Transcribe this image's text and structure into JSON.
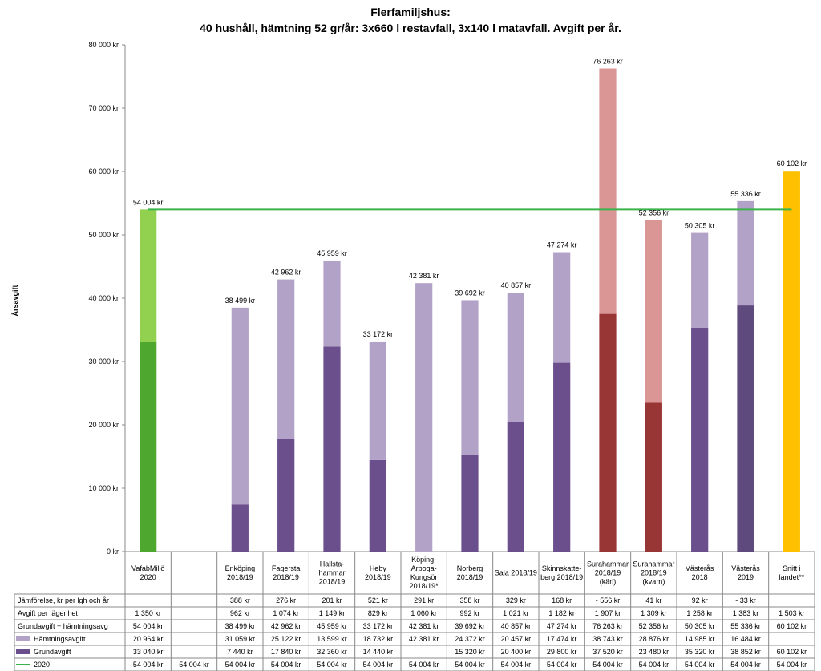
{
  "chart_data": {
    "type": "bar",
    "title_line1": "Flerfamiljshus:",
    "title_line2": "40 hushåll, hämtning 52 gr/år: 3x660 l restavfall, 3x140 l matavfall. Avgift per år.",
    "ylabel": "Årsavgift",
    "ylim": [
      0,
      80000
    ],
    "y_ticks": [
      "0 kr",
      "10 000 kr",
      "20 000 kr",
      "30 000 kr",
      "40 000 kr",
      "50 000 kr",
      "60 000 kr",
      "70 000 kr",
      "80 000 kr"
    ],
    "categories": [
      [
        "VafabMiljö",
        "2020"
      ],
      [],
      [
        "Enköping",
        "2018/19"
      ],
      [
        "Fagersta",
        "2018/19"
      ],
      [
        "Hallsta-",
        "hammar",
        "2018/19"
      ],
      [
        "Heby",
        "2018/19"
      ],
      [
        "Köping-",
        "Arboga-",
        "Kungsör",
        "2018/19*"
      ],
      [
        "Norberg",
        "2018/19"
      ],
      [
        "Sala 2018/19"
      ],
      [
        "Skinnskatte-",
        "berg 2018/19"
      ],
      [
        "Surahammar",
        "2018/19",
        "(kärl)"
      ],
      [
        "Surahammar",
        "2018/19",
        "(kvarn)"
      ],
      [
        "Västerås",
        "2018"
      ],
      [
        "Västerås",
        "2019"
      ],
      [
        "Snitt i",
        "landet**"
      ]
    ],
    "totals": [
      54004,
      null,
      38499,
      42962,
      45959,
      33172,
      42381,
      39692,
      40857,
      47274,
      76263,
      52356,
      50305,
      55336,
      60102
    ],
    "total_labels": [
      "54 004 kr",
      "",
      "38 499 kr",
      "42 962 kr",
      "45 959 kr",
      "33 172 kr",
      "42 381 kr",
      "39 692 kr",
      "40 857 kr",
      "47 274 kr",
      "76 263 kr",
      "52 356 kr",
      "50 305 kr",
      "55 336 kr",
      "60 102 kr"
    ],
    "series": [
      {
        "name": "Grundavgift",
        "values": [
          33040,
          null,
          7440,
          17840,
          32360,
          14440,
          null,
          15320,
          20400,
          29800,
          37520,
          23480,
          35320,
          38852,
          60102
        ],
        "colors": [
          "#4ea72e",
          "",
          "#6a4f8c",
          "#6a4f8c",
          "#6a4f8c",
          "#6a4f8c",
          "",
          "#6a4f8c",
          "#6a4f8c",
          "#6a4f8c",
          "#983535",
          "#983535",
          "#6a4f8c",
          "#5f4a7e",
          "#ffc000"
        ]
      },
      {
        "name": "Hämtningsavgift",
        "values": [
          20964,
          null,
          31059,
          25122,
          13599,
          18732,
          42381,
          24372,
          20457,
          17474,
          38743,
          28876,
          14985,
          16484,
          null
        ],
        "colors": [
          "#92d050",
          "",
          "#b3a2c7",
          "#b3a2c7",
          "#b3a2c7",
          "#b3a2c7",
          "#b3a2c7",
          "#b3a2c7",
          "#b3a2c7",
          "#b3a2c7",
          "#d99694",
          "#d99694",
          "#b3a2c7",
          "#b3a2c7",
          ""
        ]
      },
      {
        "name": "2020",
        "type": "line",
        "value": 54004,
        "color": "#3ab34a"
      }
    ],
    "table": {
      "rows": [
        {
          "label": "Jämförelse, kr per lgh och år",
          "swatch": "",
          "cells": [
            "",
            "",
            "388 kr",
            "276 kr",
            "201 kr",
            "521 kr",
            "291 kr",
            "358 kr",
            "329 kr",
            "168 kr",
            "- 556 kr",
            "41 kr",
            "92 kr",
            "- 33 kr",
            ""
          ]
        },
        {
          "label": "Avgift per lägenhet",
          "swatch": "",
          "cells": [
            "1 350 kr",
            "",
            "962 kr",
            "1 074 kr",
            "1 149 kr",
            "829 kr",
            "1 060 kr",
            "992 kr",
            "1 021 kr",
            "1 182 kr",
            "1 907 kr",
            "1 309 kr",
            "1 258 kr",
            "1 383 kr",
            "1 503 kr"
          ]
        },
        {
          "label": "Grundavgift + hämtningsavg",
          "swatch": "",
          "cells": [
            "54 004 kr",
            "",
            "38 499 kr",
            "42 962 kr",
            "45 959 kr",
            "33 172 kr",
            "42 381 kr",
            "39 692 kr",
            "40 857 kr",
            "47 274 kr",
            "76 263 kr",
            "52 356 kr",
            "50 305 kr",
            "55 336 kr",
            "60 102 kr"
          ]
        },
        {
          "label": "Hämtningsavgift",
          "swatch": "#b3a2c7",
          "cells": [
            "20 964 kr",
            "",
            "31 059 kr",
            "25 122 kr",
            "13 599 kr",
            "18 732 kr",
            "42 381 kr",
            "24 372 kr",
            "20 457 kr",
            "17 474 kr",
            "38 743 kr",
            "28 876 kr",
            "14 985 kr",
            "16 484 kr",
            ""
          ]
        },
        {
          "label": "Grundavgift",
          "swatch": "#6a4f8c",
          "cells": [
            "33 040 kr",
            "",
            "7 440 kr",
            "17 840 kr",
            "32 360 kr",
            "14 440 kr",
            "",
            "15 320 kr",
            "20 400 kr",
            "29 800 kr",
            "37 520 kr",
            "23 480 kr",
            "35 320 kr",
            "38 852 kr",
            "60 102 kr"
          ]
        },
        {
          "label": "2020",
          "swatch_line": "#3ab34a",
          "cells": [
            "54 004 kr",
            "54 004 kr",
            "54 004 kr",
            "54 004 kr",
            "54 004 kr",
            "54 004 kr",
            "54 004 kr",
            "54 004 kr",
            "54 004 kr",
            "54 004 kr",
            "54 004 kr",
            "54 004 kr",
            "54 004 kr",
            "54 004 kr",
            "54 004 kr"
          ]
        }
      ]
    }
  }
}
